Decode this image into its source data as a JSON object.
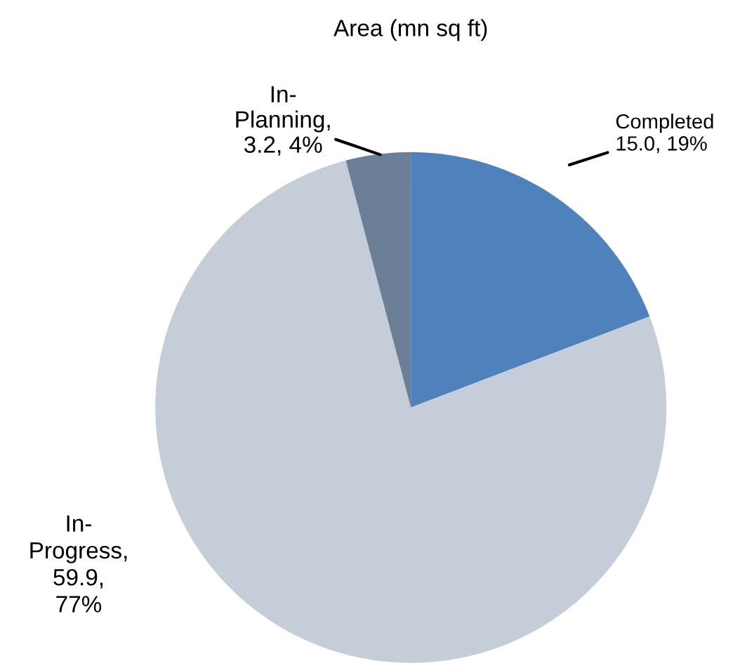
{
  "chart_data": {
    "type": "pie",
    "title": "Area (mn sq ft)",
    "categories": [
      "Completed",
      "In-Progress",
      "In-Planning"
    ],
    "values": [
      15.0,
      59.9,
      3.2
    ],
    "colors": [
      "#4f81bd",
      "#c5ced8",
      "#6b7f96"
    ],
    "value_labels": [
      "15.0, 19%",
      ",\n59.9,\n77%",
      ",\n3.2, 4%"
    ],
    "legend": false
  }
}
